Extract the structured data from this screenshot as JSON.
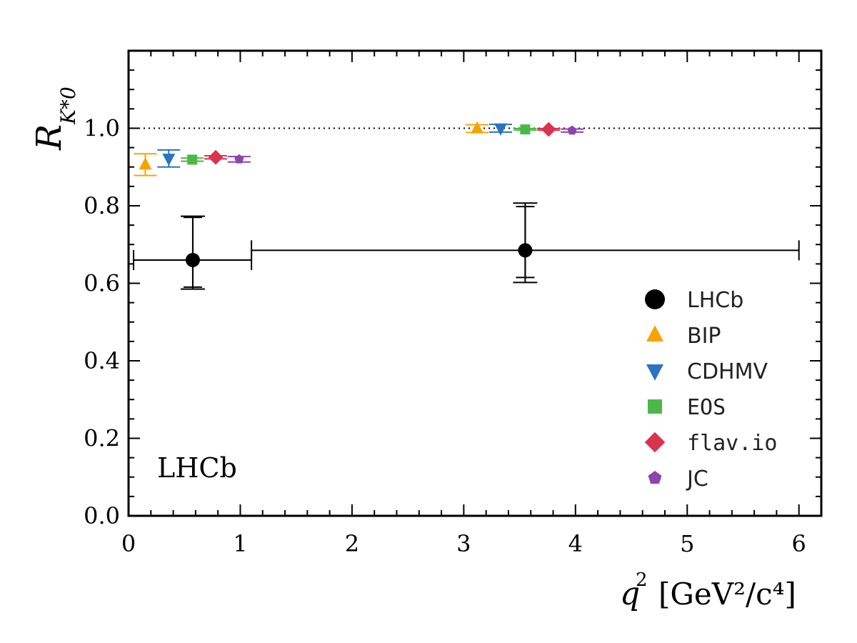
{
  "chart_data": {
    "type": "scatter",
    "ylabel_main": "R",
    "ylabel_sub": "K*0",
    "xlabel_main": "q",
    "xlabel_units": "[GeV²/c⁴]",
    "xlim": [
      0,
      6.2
    ],
    "ylim": [
      0,
      1.2
    ],
    "xticks": [
      0,
      1,
      2,
      3,
      4,
      5,
      6
    ],
    "xtick_labels": [
      "0",
      "1",
      "2",
      "3",
      "4",
      "5",
      "6"
    ],
    "yticks": [
      0.0,
      0.2,
      0.4,
      0.6,
      0.8,
      1.0
    ],
    "ytick_labels": [
      "0.0",
      "0.2",
      "0.4",
      "0.6",
      "0.8",
      "1.0"
    ],
    "reference_line": 1.0,
    "annotation": "LHCb",
    "legend_position": "lower-right",
    "series": [
      {
        "name": "LHCb",
        "marker": "circle",
        "color": "#000000",
        "points": [
          {
            "x": 0.575,
            "y": 0.66,
            "xerr_low": 0.53,
            "xerr_high": 0.525,
            "stat": [
              0.07,
              0.11
            ],
            "total": [
              0.075,
              0.113
            ]
          },
          {
            "x": 3.55,
            "y": 0.685,
            "xerr_low": 2.45,
            "xerr_high": 2.45,
            "stat": [
              0.07,
              0.113
            ],
            "total": [
              0.083,
              0.122
            ]
          }
        ]
      },
      {
        "name": "BIP",
        "marker": "triangle-up",
        "color": "#f7a400",
        "points": [
          {
            "x": 0.15,
            "y": 0.906,
            "yerr_low": 0.028,
            "yerr_high": 0.028
          },
          {
            "x": 3.12,
            "y": 0.999,
            "yerr_low": 0.01,
            "yerr_high": 0.01
          }
        ]
      },
      {
        "name": "CDHMV",
        "marker": "triangle-down",
        "color": "#2a73c0",
        "points": [
          {
            "x": 0.36,
            "y": 0.922,
            "yerr_low": 0.022,
            "yerr_high": 0.022
          },
          {
            "x": 3.33,
            "y": 1.0,
            "yerr_low": 0.01,
            "yerr_high": 0.01
          }
        ]
      },
      {
        "name": "EOS",
        "marker": "square",
        "color": "#4cb848",
        "points": [
          {
            "x": 0.57,
            "y": 0.919,
            "yerr_low": 0.004,
            "yerr_high": 0.004
          },
          {
            "x": 3.55,
            "y": 0.997,
            "yerr_low": 0.002,
            "yerr_high": 0.002
          }
        ]
      },
      {
        "name": "flav.io",
        "marker": "diamond",
        "color": "#d9344f",
        "points": [
          {
            "x": 0.78,
            "y": 0.925,
            "yerr_low": 0.004,
            "yerr_high": 0.004
          },
          {
            "x": 3.76,
            "y": 0.997,
            "yerr_low": 0.002,
            "yerr_high": 0.002
          }
        ]
      },
      {
        "name": "JC",
        "marker": "pentagon",
        "color": "#8e44ad",
        "points": [
          {
            "x": 0.99,
            "y": 0.92,
            "yerr_low": 0.007,
            "yerr_high": 0.007
          },
          {
            "x": 3.97,
            "y": 0.994,
            "yerr_low": 0.004,
            "yerr_high": 0.004
          }
        ]
      }
    ]
  }
}
